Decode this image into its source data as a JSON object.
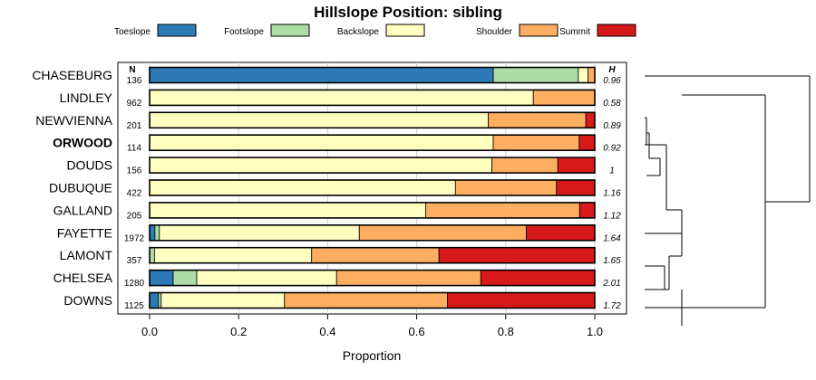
{
  "chart_data": {
    "type": "bar",
    "orientation": "horizontal",
    "stacked": true,
    "title": "Hillslope Position: sibling",
    "xlabel": "Proportion",
    "ylabel": "",
    "xlim": [
      0,
      1
    ],
    "xticks": [
      "0.0",
      "0.2",
      "0.4",
      "0.6",
      "0.8",
      "1.0"
    ],
    "legend_position": "top",
    "n_header": "N",
    "h_header": "H",
    "series": [
      {
        "name": "Toeslope",
        "color": "#2c7bb6"
      },
      {
        "name": "Footslope",
        "color": "#abdda4"
      },
      {
        "name": "Backslope",
        "color": "#ffffbf"
      },
      {
        "name": "Shoulder",
        "color": "#fdae61"
      },
      {
        "name": "Summit",
        "color": "#d7191c"
      }
    ],
    "rows": [
      {
        "label": "CHASEBURG",
        "n": "136",
        "h": "0.96",
        "bold": false,
        "values": [
          0.772,
          0.191,
          0.022,
          0.015,
          0.0
        ]
      },
      {
        "label": "LINDLEY",
        "n": "962",
        "h": "0.58",
        "bold": false,
        "values": [
          0.0,
          0.0,
          0.862,
          0.138,
          0.0
        ]
      },
      {
        "label": "NEWVIENNA",
        "n": "201",
        "h": "0.89",
        "bold": false,
        "values": [
          0.0,
          0.0,
          0.761,
          0.219,
          0.02
        ]
      },
      {
        "label": "ORWOOD",
        "n": "114",
        "h": "0.92",
        "bold": true,
        "values": [
          0.0,
          0.0,
          0.772,
          0.193,
          0.035
        ]
      },
      {
        "label": "DOUDS",
        "n": "156",
        "h": "1",
        "bold": false,
        "values": [
          0.0,
          0.0,
          0.769,
          0.148,
          0.083
        ]
      },
      {
        "label": "DUBUQUE",
        "n": "422",
        "h": "1.16",
        "bold": false,
        "values": [
          0.0,
          0.0,
          0.687,
          0.227,
          0.086
        ]
      },
      {
        "label": "GALLAND",
        "n": "205",
        "h": "1.12",
        "bold": false,
        "values": [
          0.0,
          0.0,
          0.62,
          0.346,
          0.034
        ]
      },
      {
        "label": "FAYETTE",
        "n": "1972",
        "h": "1.64",
        "bold": false,
        "values": [
          0.012,
          0.01,
          0.449,
          0.375,
          0.154
        ]
      },
      {
        "label": "LAMONT",
        "n": "357",
        "h": "1.65",
        "bold": false,
        "values": [
          0.0,
          0.011,
          0.353,
          0.286,
          0.35
        ]
      },
      {
        "label": "CHELSEA",
        "n": "1280",
        "h": "2.01",
        "bold": false,
        "values": [
          0.053,
          0.053,
          0.314,
          0.324,
          0.256
        ]
      },
      {
        "label": "DOWNS",
        "n": "1125",
        "h": "1.72",
        "bold": false,
        "values": [
          0.02,
          0.006,
          0.277,
          0.366,
          0.331
        ]
      }
    ]
  }
}
